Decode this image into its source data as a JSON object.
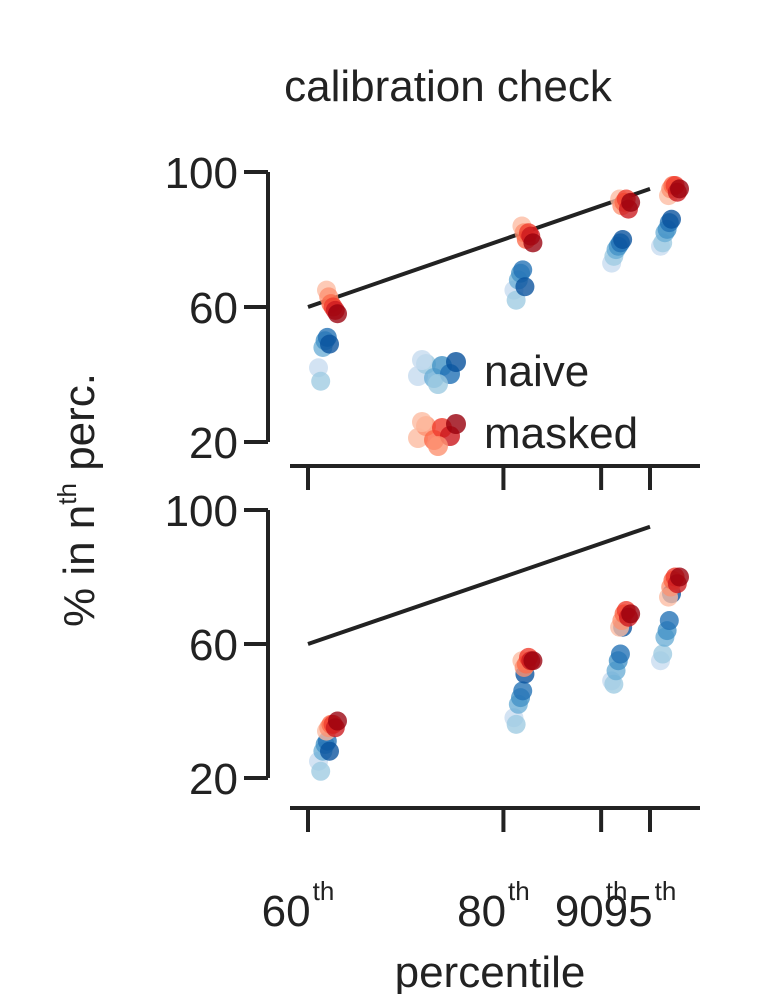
{
  "chart_data": {
    "type": "scatter",
    "title": "calibration check",
    "xlabel": "percentile",
    "ylabel": {
      "prefix": "% in n",
      "sup": "th",
      "suffix": " perc."
    },
    "x_ticks": [
      {
        "x": 60,
        "base": "60",
        "sup": "th"
      },
      {
        "x": 80,
        "base": "80",
        "sup": "th"
      },
      {
        "x": 90,
        "base": "90",
        "sup": "th"
      },
      {
        "x": 95,
        "base": "95",
        "sup": "th"
      }
    ],
    "xlim": [
      57.5,
      97.5
    ],
    "ylim": [
      20,
      100
    ],
    "yticks": [
      20,
      60,
      100
    ],
    "legend": {
      "placement": "lower-right",
      "panel": "top"
    },
    "colors": {
      "naive": [
        "#c6dbef",
        "#9ecae1",
        "#6baed6",
        "#4292c6",
        "#2171b5",
        "#08519c"
      ],
      "masked": [
        "#fcbba1",
        "#fc9272",
        "#fb6a4a",
        "#ef3b2c",
        "#cb181d",
        "#99000d"
      ],
      "line": "#222222"
    },
    "panels": [
      {
        "name": "top",
        "reference_line": {
          "x": [
            60,
            95
          ],
          "y": [
            60,
            95
          ]
        },
        "series": [
          {
            "name": "naive",
            "points": {
              "60": [
                42,
                38,
                48,
                50,
                51,
                49
              ],
              "80": [
                65,
                62,
                68,
                70,
                71,
                66
              ],
              "90": [
                73,
                75,
                77,
                78,
                79,
                80
              ],
              "95": [
                78,
                79,
                82,
                83,
                85,
                86
              ]
            }
          },
          {
            "name": "masked",
            "points": {
              "60": [
                65,
                63,
                61,
                60,
                59,
                58
              ],
              "80": [
                84,
                82,
                80,
                82,
                81,
                79
              ],
              "90": [
                92,
                90,
                91,
                92,
                89,
                91
              ],
              "95": [
                93,
                95,
                96,
                96,
                94,
                95
              ]
            }
          }
        ]
      },
      {
        "name": "bottom",
        "reference_line": {
          "x": [
            60,
            95
          ],
          "y": [
            60,
            95
          ]
        },
        "series": [
          {
            "name": "naive",
            "points": {
              "60": [
                25,
                22,
                28,
                30,
                31,
                28
              ],
              "80": [
                38,
                36,
                42,
                44,
                46,
                51
              ],
              "90": [
                49,
                48,
                52,
                55,
                57,
                65
              ],
              "95": [
                55,
                57,
                62,
                64,
                67,
                75
              ]
            }
          },
          {
            "name": "masked",
            "points": {
              "60": [
                34,
                35,
                36,
                36,
                35,
                37
              ],
              "80": [
                55,
                53,
                54,
                56,
                55,
                55
              ],
              "90": [
                65,
                67,
                69,
                70,
                68,
                69
              ],
              "95": [
                74,
                77,
                79,
                80,
                78,
                80
              ]
            }
          }
        ]
      }
    ]
  }
}
